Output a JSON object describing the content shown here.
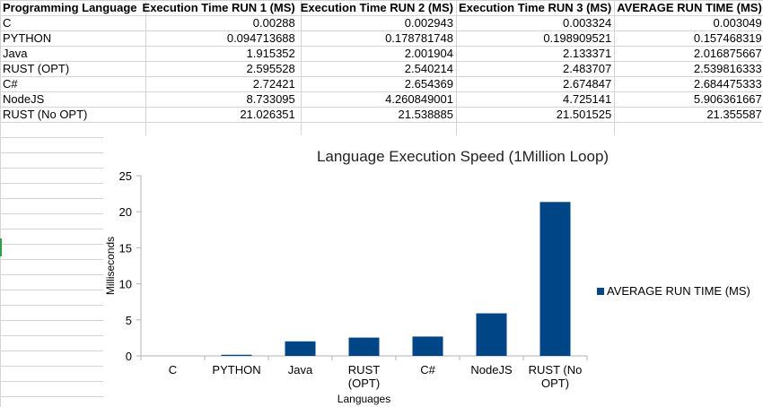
{
  "table": {
    "headers": [
      "Programming Language",
      "Execution Time RUN 1 (MS)",
      "Execution Time RUN 2 (MS)",
      "Execution Time RUN 3 (MS)",
      "AVERAGE RUN TIME (MS)"
    ],
    "rows": [
      [
        "C",
        "0.00288",
        "0.002943",
        "0.003324",
        "0.003049"
      ],
      [
        "PYTHON",
        "0.094713688",
        "0.178781748",
        "0.198909521",
        "0.157468319"
      ],
      [
        "Java",
        "1.915352",
        "2.001904",
        "2.133371",
        "2.016875667"
      ],
      [
        "RUST (OPT)",
        "2.595528",
        "2.540214",
        "2.483707",
        "2.539816333"
      ],
      [
        "C#",
        "2.72421",
        "2.654369",
        "2.674847",
        "2.684475333"
      ],
      [
        "NodeJS",
        "8.733095",
        "4.260849001",
        "4.725141",
        "5.906361667"
      ],
      [
        "RUST (No OPT)",
        "21.026351",
        "21.538885",
        "21.501525",
        "21.355587"
      ]
    ]
  },
  "chart_data": {
    "type": "bar",
    "title": "Language Execution Speed (1Million Loop)",
    "xlabel": "Languages",
    "ylabel": "Milliseconds",
    "categories": [
      "C",
      "PYTHON",
      "Java",
      "RUST (OPT)",
      "C#",
      "NodeJS",
      "RUST (No OPT)"
    ],
    "category_lines": [
      [
        "C"
      ],
      [
        "PYTHON"
      ],
      [
        "Java"
      ],
      [
        "RUST",
        "(OPT)"
      ],
      [
        "C#"
      ],
      [
        "NodeJS"
      ],
      [
        "RUST (No",
        "OPT)"
      ]
    ],
    "series": [
      {
        "name": "AVERAGE RUN TIME (MS)",
        "values": [
          0.003049,
          0.157468319,
          2.016875667,
          2.539816333,
          2.684475333,
          5.906361667,
          21.355587
        ]
      }
    ],
    "ylim": [
      0,
      25
    ],
    "yticks": [
      0,
      5,
      10,
      15,
      20,
      25
    ],
    "grid": false,
    "legend": "right",
    "colors": {
      "bar": "#004586",
      "axis": "#b3b3b3",
      "text": "#000000"
    }
  }
}
